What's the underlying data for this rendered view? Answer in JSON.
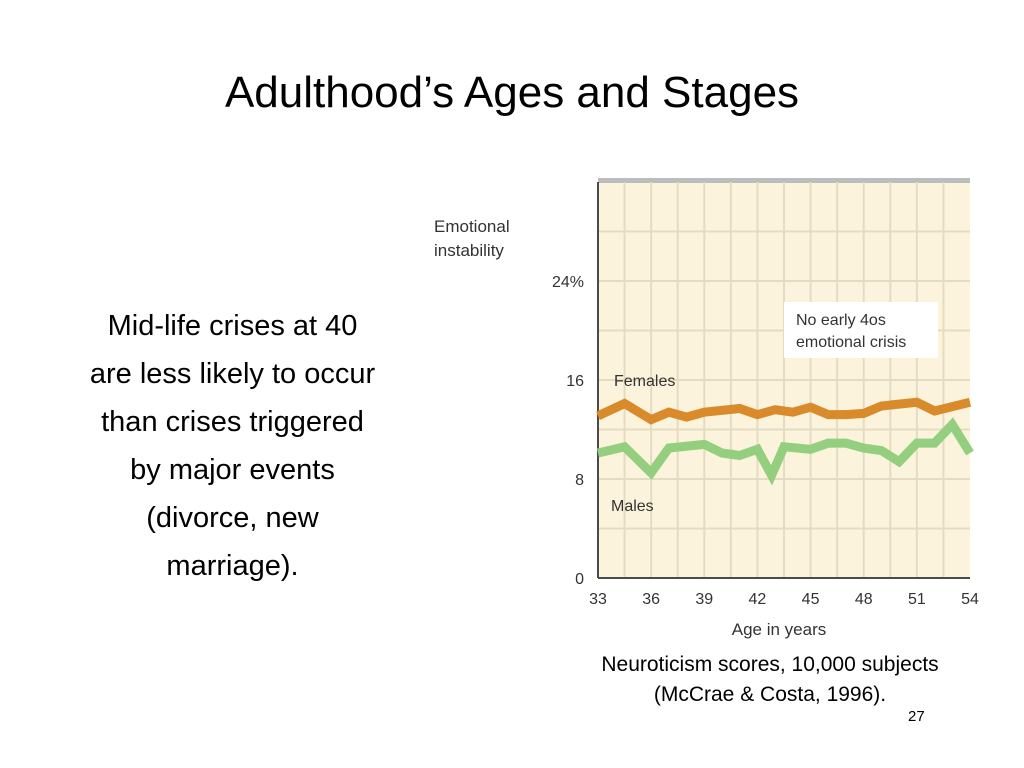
{
  "slide": {
    "title": "Adulthood’s Ages and Stages",
    "body_lines": [
      "Mid-life crises at 40",
      "are less likely to occur",
      "than crises triggered",
      "by major events",
      "(divorce, new",
      "marriage)."
    ],
    "caption_lines": [
      "Neuroticism scores, 10,000 subjects",
      "(McCrae & Costa, 1996)."
    ],
    "slide_number": "27"
  },
  "chart_data": {
    "type": "line",
    "ylabel_lines": [
      "Emotional",
      "instability"
    ],
    "xlabel": "Age in years",
    "x_ticks": [
      "33",
      "36",
      "39",
      "42",
      "45",
      "48",
      "51",
      "54"
    ],
    "y_ticks": [
      "0",
      "8",
      "16",
      "24%"
    ],
    "xlim": [
      33,
      54
    ],
    "ylim": [
      0,
      32
    ],
    "grid": true,
    "annotation_lines": [
      "No early 4os",
      "emotional crisis"
    ],
    "colors": {
      "background": "#fcf3dc",
      "grid": "#e4dcc2",
      "axis": "#4a4a4a",
      "top_bar": "#bcbcbc",
      "females": "#d98a2b",
      "males": "#93cf7f"
    },
    "series": [
      {
        "name": "Females",
        "x": [
          33,
          34.5,
          36,
          37,
          38,
          39,
          41,
          42,
          43,
          44,
          45,
          46,
          47,
          48,
          49,
          51,
          52,
          54
        ],
        "y": [
          13.1,
          14.1,
          12.8,
          13.4,
          13.0,
          13.4,
          13.7,
          13.2,
          13.6,
          13.4,
          13.8,
          13.2,
          13.2,
          13.3,
          13.9,
          14.2,
          13.5,
          14.2
        ]
      },
      {
        "name": "Males",
        "x": [
          33,
          34.5,
          36,
          37,
          39,
          40,
          41,
          42,
          42.8,
          43.5,
          45,
          46,
          47,
          48,
          49,
          50,
          51,
          52,
          53,
          54
        ],
        "y": [
          10.1,
          10.6,
          8.5,
          10.5,
          10.8,
          10.1,
          9.9,
          10.4,
          8.3,
          10.6,
          10.4,
          10.9,
          10.9,
          10.5,
          10.3,
          9.4,
          10.9,
          10.9,
          12.4,
          10.1
        ]
      }
    ]
  }
}
